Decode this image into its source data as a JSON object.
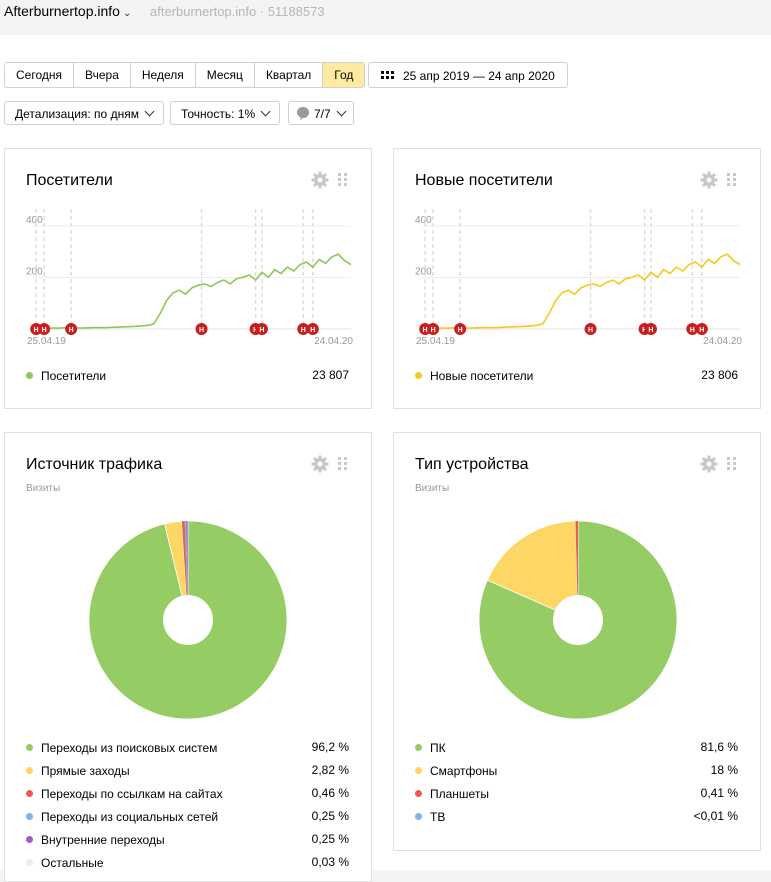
{
  "header": {
    "site_title": "Afterburnertop.info",
    "site_sub": "afterburnertop.info · 51188573"
  },
  "toolbar": {
    "periods": [
      "Сегодня",
      "Вчера",
      "Неделя",
      "Месяц",
      "Квартал",
      "Год"
    ],
    "active_period": "Год",
    "date_range": "25 апр 2019 — 24 апр 2020",
    "detail": "Детализация: по дням",
    "accuracy": "Точность: 1%",
    "goals": "7/7"
  },
  "visitors_card": {
    "title": "Посетители",
    "legend_label": "Посетители",
    "total": "23 807",
    "color": "#8fc656",
    "y_ticks": [
      "400",
      "200"
    ],
    "x_start": "25.04.19",
    "x_end": "24.04.20",
    "marker_letter": "Н"
  },
  "new_visitors_card": {
    "title": "Новые посетители",
    "legend_label": "Новые посетители",
    "total": "23 806",
    "color": "#f4c91f",
    "y_ticks": [
      "400",
      "200"
    ],
    "x_start": "25.04.19",
    "x_end": "24.04.20",
    "marker_letter": "Н"
  },
  "traffic_card": {
    "title": "Источник трафика",
    "subtitle": "Визиты",
    "items": [
      {
        "label": "Переходы из поисковых систем",
        "value": "96,2 %",
        "color": "#95cc64"
      },
      {
        "label": "Прямые заходы",
        "value": "2,82 %",
        "color": "#fdd665"
      },
      {
        "label": "Переходы по ссылкам на сайтах",
        "value": "0,46 %",
        "color": "#e85e48"
      },
      {
        "label": "Переходы из социальных сетей",
        "value": "0,25 %",
        "color": "#7ab5e6"
      },
      {
        "label": "Внутренние переходы",
        "value": "0,25 %",
        "color": "#a25bc2"
      },
      {
        "label": "Остальные",
        "value": "0,03 %",
        "color": "#eeeeee"
      }
    ]
  },
  "device_card": {
    "title": "Тип устройства",
    "subtitle": "Визиты",
    "items": [
      {
        "label": "ПК",
        "value": "81,6 %",
        "color": "#95cc64"
      },
      {
        "label": "Смартфоны",
        "value": "18 %",
        "color": "#fdd665"
      },
      {
        "label": "Планшеты",
        "value": "0,41 %",
        "color": "#e85e48"
      },
      {
        "label": "ТВ",
        "value": "<0,01 %",
        "color": "#7ab5e6"
      }
    ]
  },
  "chart_data": [
    {
      "type": "line",
      "title": "Посетители",
      "xlabel": "",
      "ylabel": "",
      "x_range": [
        "25.04.19",
        "24.04.20"
      ],
      "ylim": [
        0,
        450
      ],
      "series": [
        {
          "name": "Посетители",
          "values": [
            2,
            3,
            2,
            4,
            3,
            5,
            3,
            4,
            4,
            5,
            6,
            5,
            6,
            7,
            8,
            9,
            10,
            12,
            14,
            20,
            60,
            110,
            140,
            150,
            135,
            160,
            170,
            175,
            165,
            180,
            190,
            175,
            195,
            200,
            210,
            190,
            220,
            200,
            230,
            215,
            240,
            225,
            250,
            260,
            240,
            270,
            255,
            280,
            290,
            265,
            250
          ]
        }
      ]
    },
    {
      "type": "line",
      "title": "Новые посетители",
      "xlabel": "",
      "ylabel": "",
      "x_range": [
        "25.04.19",
        "24.04.20"
      ],
      "ylim": [
        0,
        450
      ],
      "series": [
        {
          "name": "Новые посетители",
          "values": [
            2,
            3,
            2,
            4,
            3,
            5,
            3,
            4,
            4,
            5,
            6,
            5,
            6,
            7,
            8,
            9,
            10,
            12,
            14,
            20,
            60,
            110,
            140,
            150,
            135,
            160,
            170,
            175,
            165,
            180,
            190,
            175,
            195,
            200,
            210,
            190,
            220,
            200,
            230,
            215,
            240,
            225,
            250,
            260,
            240,
            270,
            255,
            280,
            290,
            265,
            250
          ]
        }
      ]
    },
    {
      "type": "pie",
      "title": "Источник трафика",
      "categories": [
        "Переходы из поисковых систем",
        "Прямые заходы",
        "Переходы по ссылкам на сайтах",
        "Переходы из социальных сетей",
        "Внутренние переходы",
        "Остальные"
      ],
      "values": [
        96.2,
        2.82,
        0.46,
        0.25,
        0.25,
        0.03
      ]
    },
    {
      "type": "pie",
      "title": "Тип устройства",
      "categories": [
        "ПК",
        "Смартфоны",
        "Планшеты",
        "ТВ"
      ],
      "values": [
        81.6,
        18,
        0.41,
        0.005
      ]
    }
  ]
}
